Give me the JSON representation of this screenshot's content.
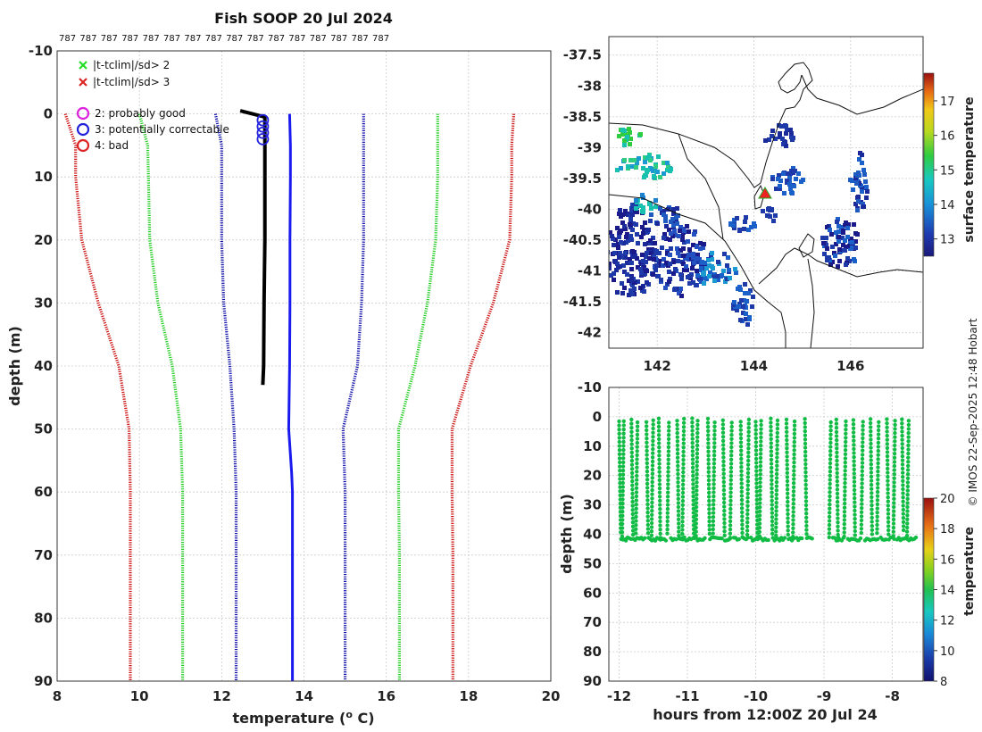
{
  "title": "Fish SOOP 20 Jul 2024",
  "credit": "© IMOS 22-Sep-2025 12:48 Hobart",
  "profile_counts": [
    "787",
    "787",
    "787",
    "787",
    "787",
    "787",
    "787",
    "787",
    "787",
    "787",
    "787",
    "787",
    "787",
    "787",
    "787",
    "787"
  ],
  "chart_data": [
    {
      "type": "line",
      "name": "profile",
      "xlabel": "temperature (o C)",
      "ylabel": "depth (m)",
      "xlim": [
        8,
        20
      ],
      "ylim": [
        90,
        -10
      ],
      "xticks": [
        "8",
        "10",
        "12",
        "14",
        "16",
        "18",
        "20"
      ],
      "yticks": [
        "-10",
        "0",
        "10",
        "20",
        "30",
        "40",
        "50",
        "60",
        "70",
        "80",
        "90"
      ],
      "legend_entries": [
        {
          "symbol": "x",
          "color": "#22dd22",
          "label": "|t-tclim|/sd> 2"
        },
        {
          "symbol": "x",
          "color": "#dd2222",
          "label": "|t-tclim|/sd> 3"
        },
        {
          "symbol": "o",
          "color": "#dd22dd",
          "label": "2: probably good"
        },
        {
          "symbol": "o",
          "color": "#2222dd",
          "label": "3: potentially correctable"
        },
        {
          "symbol": "o",
          "color": "#dd2222",
          "label": "4: bad"
        }
      ],
      "series": [
        {
          "name": "clim-3sd",
          "color": "#cc1111",
          "style": "dotted",
          "depth": [
            0,
            5,
            10,
            20,
            30,
            40,
            50,
            60,
            70,
            80,
            90
          ],
          "temp": [
            8.2,
            8.45,
            8.45,
            8.6,
            9.0,
            9.5,
            9.75,
            9.78,
            9.78,
            9.78,
            9.78
          ]
        },
        {
          "name": "clim-2sd",
          "color": "#22cc22",
          "style": "dotted",
          "depth": [
            0,
            5,
            10,
            20,
            30,
            40,
            50,
            60,
            70,
            80,
            90
          ],
          "temp": [
            10.0,
            10.2,
            10.22,
            10.25,
            10.45,
            10.8,
            11.0,
            11.05,
            11.05,
            11.05,
            11.05
          ]
        },
        {
          "name": "clim-1sd",
          "color": "#1111aa",
          "style": "dotted",
          "depth": [
            0,
            5,
            10,
            20,
            30,
            40,
            50,
            60,
            70,
            80,
            90
          ],
          "temp": [
            11.85,
            12.0,
            12.0,
            12.0,
            12.05,
            12.2,
            12.3,
            12.35,
            12.35,
            12.35,
            12.35
          ]
        },
        {
          "name": "clim-mean",
          "color": "#1a1aee",
          "style": "solid",
          "depth": [
            0,
            5,
            10,
            20,
            30,
            40,
            50,
            57,
            60,
            70,
            80,
            90
          ],
          "temp": [
            13.65,
            13.67,
            13.67,
            13.66,
            13.66,
            13.65,
            13.63,
            13.7,
            13.72,
            13.72,
            13.72,
            13.72
          ]
        },
        {
          "name": "clim+1sd",
          "color": "#1111aa",
          "style": "dotted",
          "depth": [
            0,
            5,
            10,
            20,
            30,
            40,
            50,
            60,
            70,
            80,
            90
          ],
          "temp": [
            15.45,
            15.45,
            15.45,
            15.45,
            15.4,
            15.3,
            14.95,
            15.0,
            15.0,
            15.0,
            15.0
          ]
        },
        {
          "name": "clim+2sd",
          "color": "#22cc22",
          "style": "dotted",
          "depth": [
            0,
            5,
            10,
            20,
            30,
            40,
            50,
            60,
            70,
            80,
            90
          ],
          "temp": [
            17.25,
            17.25,
            17.25,
            17.2,
            17.0,
            16.7,
            16.3,
            16.3,
            16.32,
            16.32,
            16.32
          ]
        },
        {
          "name": "clim+3sd",
          "color": "#cc1111",
          "style": "dotted",
          "depth": [
            0,
            5,
            10,
            20,
            30,
            40,
            50,
            60,
            70,
            80,
            90
          ],
          "temp": [
            19.1,
            19.05,
            19.05,
            19.0,
            18.6,
            18.05,
            17.6,
            17.6,
            17.62,
            17.62,
            17.62
          ]
        },
        {
          "name": "observed",
          "color": "#000000",
          "style": "solid",
          "depth": [
            -0.5,
            0,
            0.5,
            1,
            2,
            5,
            10,
            20,
            30,
            40,
            43
          ],
          "temp": [
            12.45,
            12.75,
            13.05,
            13.05,
            13.05,
            13.05,
            13.05,
            13.05,
            13.03,
            13.02,
            13.0
          ]
        }
      ],
      "flag_markers": {
        "flag": "3: potentially correctable",
        "color": "#2222dd",
        "temp": 13.0,
        "depth": [
          1,
          2,
          3,
          4
        ]
      }
    },
    {
      "type": "heatmap",
      "name": "map",
      "xticks": [
        "142",
        "144",
        "146"
      ],
      "yticks": [
        "-37.5",
        "-38",
        "-38.5",
        "-39",
        "-39.5",
        "-40",
        "-40.5",
        "-41",
        "-41.5",
        "-42"
      ],
      "xlim": [
        141.0,
        147.5
      ],
      "ylim": [
        -42.25,
        -37.2
      ],
      "colorbar_label": "surface temperature",
      "colorbar_ticks": [
        "13",
        "14",
        "15",
        "16",
        "17"
      ],
      "colorbar_range": [
        12.5,
        17.8
      ],
      "marker": {
        "lon": 144.25,
        "lat": -39.7,
        "symbol": "triangle",
        "color": "#ee2222"
      }
    },
    {
      "type": "scatter",
      "name": "timeseries",
      "xlabel": "hours from 12:00Z 20 Jul 24",
      "ylabel": "depth (m)",
      "xlim": [
        -12.15,
        -7.55
      ],
      "ylim": [
        90,
        -10
      ],
      "xticks": [
        "-12",
        "-11",
        "-10",
        "-9",
        "-8"
      ],
      "yticks": [
        "-10",
        "0",
        "10",
        "20",
        "30",
        "40",
        "50",
        "60",
        "70",
        "80",
        "90"
      ],
      "colorbar_label": "temperature",
      "colorbar_ticks": [
        "8",
        "10",
        "12",
        "14",
        "16",
        "18",
        "20"
      ],
      "colorbar_range": [
        8,
        20
      ],
      "point_color": "#11bb44",
      "profile_times": [
        -12.0,
        -11.93,
        -11.82,
        -11.73,
        -11.6,
        -11.5,
        -11.42,
        -11.27,
        -11.15,
        -11.05,
        -10.93,
        -10.85,
        -10.7,
        -10.6,
        -10.48,
        -10.35,
        -10.22,
        -10.1,
        -10.0,
        -9.92,
        -9.78,
        -9.68,
        -9.55,
        -9.43,
        -9.28,
        -8.9,
        -8.82,
        -8.68,
        -8.57,
        -8.43,
        -8.32,
        -8.2,
        -8.08,
        -7.96,
        -7.86,
        -7.76
      ]
    }
  ]
}
